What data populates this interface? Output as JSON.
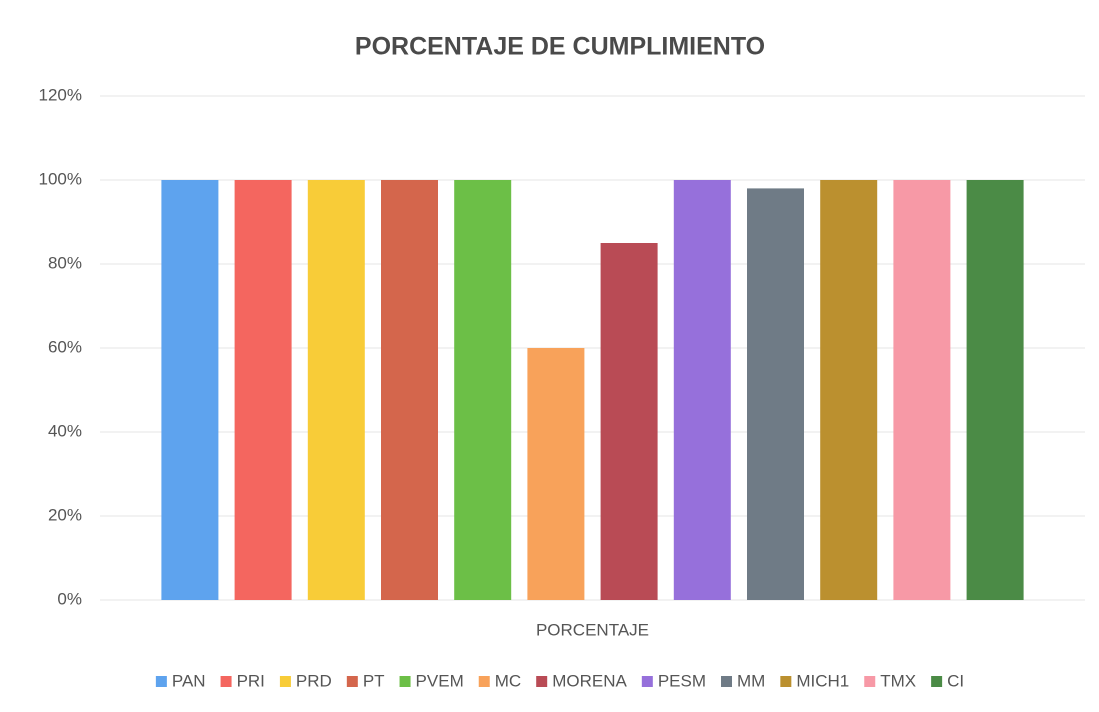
{
  "chart_data": {
    "type": "bar",
    "title": "PORCENTAJE DE CUMPLIMIENTO",
    "categories": [
      "PORCENTAJE"
    ],
    "series": [
      {
        "name": "PAN",
        "color": "#5ea3ee",
        "values": [
          100
        ]
      },
      {
        "name": "PRI",
        "color": "#f4665f",
        "values": [
          100
        ]
      },
      {
        "name": "PRD",
        "color": "#f8cc38",
        "values": [
          100
        ]
      },
      {
        "name": "PT",
        "color": "#d4664c",
        "values": [
          100
        ]
      },
      {
        "name": "PVEM",
        "color": "#6cbf47",
        "values": [
          100
        ]
      },
      {
        "name": "MC",
        "color": "#f8a25a",
        "values": [
          60
        ]
      },
      {
        "name": "MORENA",
        "color": "#b94b55",
        "values": [
          85
        ]
      },
      {
        "name": "PESM",
        "color": "#9670db",
        "values": [
          100
        ]
      },
      {
        "name": "MM",
        "color": "#6f7b86",
        "values": [
          98
        ]
      },
      {
        "name": "MICH1",
        "color": "#bb902f",
        "values": [
          100
        ]
      },
      {
        "name": "TMX",
        "color": "#f799a6",
        "values": [
          100
        ]
      },
      {
        "name": "CI",
        "color": "#4b8b46",
        "values": [
          100
        ]
      }
    ],
    "ylim": [
      0,
      120
    ],
    "yticks": [
      {
        "value": 0,
        "label": "0%"
      },
      {
        "value": 20,
        "label": "20%"
      },
      {
        "value": 40,
        "label": "40%"
      },
      {
        "value": 60,
        "label": "60%"
      },
      {
        "value": 80,
        "label": "80%"
      },
      {
        "value": 100,
        "label": "100%"
      },
      {
        "value": 120,
        "label": "120%"
      }
    ],
    "grid": true,
    "legend": "bottom"
  }
}
